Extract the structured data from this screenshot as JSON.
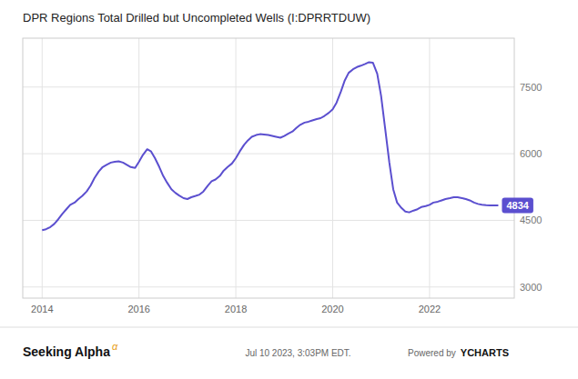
{
  "chart_data": {
    "type": "line",
    "title": "DPR Regions Total Drilled but Uncompleted Wells (I:DPRRTDUW)",
    "color": "#5b4fcf",
    "grid": true,
    "xlim": [
      2013.6,
      2023.75
    ],
    "xticks": [
      2014,
      2016,
      2018,
      2020,
      2022
    ],
    "ylim": [
      2750,
      8600
    ],
    "yticks": [
      3000,
      4500,
      6000,
      7500
    ],
    "annotation": "4834",
    "footer": [
      "Seeking Alpha",
      "α",
      "Jul 10 2023, 3:03PM EDT.",
      "Powered by",
      "YCHARTS"
    ],
    "x": [
      2014.0,
      2014.08,
      2014.17,
      2014.25,
      2014.33,
      2014.42,
      2014.5,
      2014.58,
      2014.67,
      2014.75,
      2014.83,
      2014.92,
      2015.0,
      2015.08,
      2015.17,
      2015.25,
      2015.33,
      2015.42,
      2015.5,
      2015.58,
      2015.67,
      2015.75,
      2015.83,
      2015.92,
      2016.0,
      2016.08,
      2016.17,
      2016.25,
      2016.33,
      2016.42,
      2016.5,
      2016.58,
      2016.67,
      2016.75,
      2016.83,
      2016.92,
      2017.0,
      2017.08,
      2017.17,
      2017.25,
      2017.33,
      2017.42,
      2017.5,
      2017.58,
      2017.67,
      2017.75,
      2017.83,
      2017.92,
      2018.0,
      2018.08,
      2018.17,
      2018.25,
      2018.33,
      2018.42,
      2018.5,
      2018.58,
      2018.67,
      2018.75,
      2018.83,
      2018.92,
      2019.0,
      2019.08,
      2019.17,
      2019.25,
      2019.33,
      2019.42,
      2019.5,
      2019.58,
      2019.67,
      2019.75,
      2019.83,
      2019.92,
      2020.0,
      2020.08,
      2020.17,
      2020.25,
      2020.33,
      2020.42,
      2020.5,
      2020.58,
      2020.67,
      2020.75,
      2020.83,
      2020.92,
      2021.0,
      2021.08,
      2021.17,
      2021.25,
      2021.33,
      2021.42,
      2021.5,
      2021.58,
      2021.67,
      2021.75,
      2021.83,
      2021.92,
      2022.0,
      2022.08,
      2022.17,
      2022.25,
      2022.33,
      2022.42,
      2022.5,
      2022.58,
      2022.67,
      2022.75,
      2022.83,
      2022.92,
      2023.0,
      2023.08,
      2023.17,
      2023.25,
      2023.42
    ],
    "values": [
      4280,
      4300,
      4350,
      4420,
      4520,
      4650,
      4750,
      4850,
      4900,
      4980,
      5050,
      5150,
      5280,
      5450,
      5600,
      5700,
      5750,
      5800,
      5820,
      5830,
      5800,
      5750,
      5700,
      5680,
      5820,
      5970,
      6100,
      6050,
      5900,
      5700,
      5500,
      5350,
      5200,
      5120,
      5060,
      5000,
      4980,
      5020,
      5050,
      5080,
      5150,
      5280,
      5380,
      5420,
      5500,
      5620,
      5700,
      5780,
      5900,
      6050,
      6200,
      6300,
      6380,
      6420,
      6440,
      6430,
      6420,
      6400,
      6380,
      6360,
      6400,
      6450,
      6500,
      6580,
      6650,
      6700,
      6720,
      6750,
      6780,
      6800,
      6850,
      6920,
      7000,
      7150,
      7400,
      7650,
      7820,
      7900,
      7950,
      7980,
      8020,
      8060,
      8050,
      7800,
      7300,
      6600,
      5800,
      5200,
      4900,
      4780,
      4700,
      4680,
      4720,
      4750,
      4800,
      4820,
      4850,
      4900,
      4920,
      4950,
      4980,
      5000,
      5020,
      5020,
      5000,
      4980,
      4950,
      4900,
      4870,
      4850,
      4840,
      4834,
      4834
    ]
  }
}
